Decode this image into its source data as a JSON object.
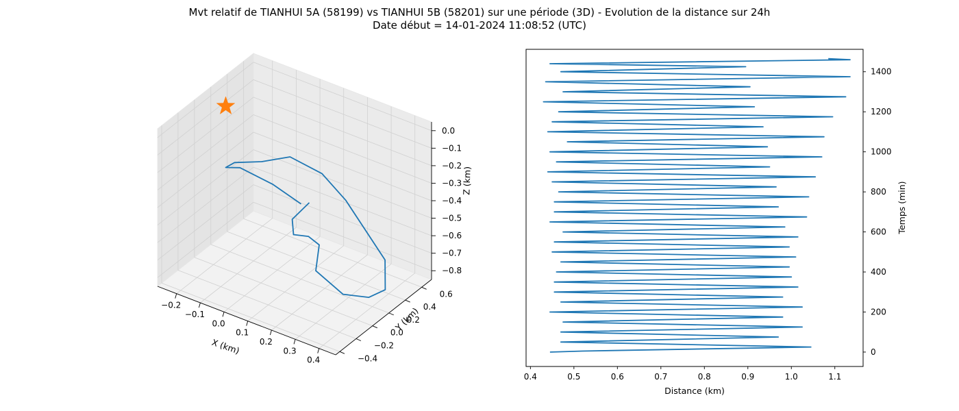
{
  "figure": {
    "title_line1": "Mvt relatif de TIANHUI 5A (58199) vs TIANHUI 5B (58201) sur une période (3D) - Evolution de la distance sur 24h",
    "title_line2": "Date début = 14-01-2024 11:08:52 (UTC)"
  },
  "chart_data": [
    {
      "type": "line3d",
      "xlabel": "X (km)",
      "ylabel": "Y (km)",
      "zlabel": "Z (km)",
      "xlim": [
        -0.28,
        0.47
      ],
      "ylim": [
        -0.45,
        0.72
      ],
      "zlim": [
        -0.85,
        0.05
      ],
      "xticks": [
        -0.2,
        -0.1,
        0.0,
        0.1,
        0.2,
        0.3,
        0.4
      ],
      "xtick_labels": [
        "−0.2",
        "−0.1",
        "0.0",
        "0.1",
        "0.2",
        "0.3",
        "0.4"
      ],
      "yticks": [
        -0.4,
        -0.2,
        0.0,
        0.2,
        0.4,
        0.6
      ],
      "ytick_labels": [
        "−0.4",
        "−0.2",
        "0.0",
        "0.2",
        "0.4",
        "0.6"
      ],
      "zticks": [
        -0.8,
        -0.7,
        -0.6,
        -0.5,
        -0.4,
        -0.3,
        -0.2,
        -0.1,
        0.0
      ],
      "ztick_labels": [
        "−0.8",
        "−0.7",
        "−0.6",
        "−0.5",
        "−0.4",
        "−0.3",
        "−0.2",
        "−0.1",
        "0.0"
      ],
      "grid": true,
      "line_color": "#1f77b4",
      "marker_color": "#ff7f0e",
      "marker": "star",
      "marker_point": {
        "x": -0.2,
        "y": 0.15,
        "z": 0.0
      },
      "trajectory": {
        "x": [
          0.1,
          -0.02,
          -0.14,
          -0.2,
          -0.18,
          -0.1,
          -0.05,
          0.05,
          0.15,
          0.25,
          0.35,
          0.42,
          0.42,
          0.38,
          0.3,
          0.28,
          0.2,
          0.12,
          0.08,
          0.1
        ],
        "y": [
          0.2,
          0.2,
          0.15,
          0.15,
          0.2,
          0.3,
          0.5,
          0.6,
          0.6,
          0.55,
          0.5,
          0.3,
          0.1,
          -0.1,
          -0.2,
          -0.1,
          0.0,
          0.05,
          0.15,
          0.3
        ],
        "z": [
          -0.42,
          -0.37,
          -0.32,
          -0.35,
          -0.33,
          -0.32,
          -0.34,
          -0.42,
          -0.52,
          -0.62,
          -0.72,
          -0.78,
          -0.75,
          -0.68,
          -0.55,
          -0.45,
          -0.48,
          -0.53,
          -0.5,
          -0.45
        ]
      }
    },
    {
      "type": "line",
      "xlabel": "Distance (km)",
      "ylabel": "Temps (min)",
      "xlim": [
        0.39,
        1.165
      ],
      "ylim": [
        -72,
        1512
      ],
      "xticks": [
        0.4,
        0.5,
        0.6,
        0.7,
        0.8,
        0.9,
        1.0,
        1.1
      ],
      "yticks": [
        0,
        200,
        400,
        600,
        800,
        1000,
        1200,
        1400
      ],
      "grid": false,
      "line_color": "#1f77b4",
      "series": [
        {
          "x": [
            0.445,
            0.52,
            1.045,
            0.47,
            0.97,
            0.47,
            1.025,
            0.475,
            0.98,
            0.445,
            1.025,
            0.47,
            0.98,
            0.455,
            1.015,
            0.455,
            1.0,
            0.46,
            0.995,
            0.47,
            1.01,
            0.45,
            0.995,
            0.455,
            1.015,
            0.475,
            0.985,
            0.445,
            1.035,
            0.455,
            0.97,
            0.455,
            1.04,
            0.465,
            0.965,
            0.45,
            1.055,
            0.44,
            0.95,
            0.46,
            1.07,
            0.445,
            0.945,
            0.485,
            1.075,
            0.44,
            0.935,
            0.45,
            1.095,
            0.465,
            0.915,
            0.43,
            1.125,
            0.475,
            0.905,
            0.435,
            1.135,
            0.47,
            0.895,
            0.445,
            1.135,
            1.085
          ],
          "y": [
            0,
            5,
            25,
            50,
            75,
            100,
            125,
            150,
            175,
            200,
            225,
            250,
            275,
            300,
            325,
            350,
            375,
            400,
            425,
            450,
            475,
            500,
            525,
            550,
            575,
            600,
            625,
            650,
            675,
            700,
            725,
            750,
            775,
            800,
            825,
            850,
            875,
            900,
            925,
            950,
            975,
            1000,
            1025,
            1050,
            1075,
            1100,
            1125,
            1150,
            1175,
            1200,
            1225,
            1250,
            1275,
            1300,
            1325,
            1350,
            1375,
            1400,
            1425,
            1440,
            1460,
            1465
          ]
        }
      ]
    }
  ]
}
